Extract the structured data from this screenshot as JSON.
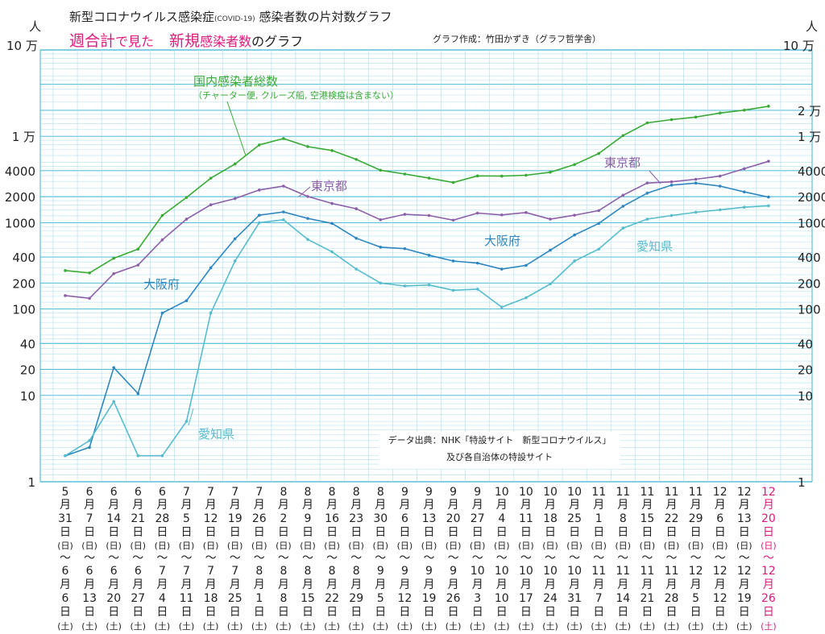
{
  "header": {
    "title_main": "新型コロナウイルス感染症",
    "title_tag": "(COVID-19)",
    "title_rest": "感染者数の片対数グラフ",
    "subtitle_a": "週合計",
    "subtitle_b": "で見た",
    "subtitle_c": "新規",
    "subtitle_d": "感染者数",
    "subtitle_e": "のグラフ",
    "credit": "グラフ作成：竹田かずき（グラフ哲学舎）"
  },
  "units": {
    "left_person": "人",
    "left_max": "10 万",
    "right_person": "人",
    "right_max": "10 万"
  },
  "source": {
    "line1": "データ出典：NHK「特設サイト　新型コロナウイルス」",
    "line2": "及び各自治体の特設サイト"
  },
  "chart_data": {
    "type": "line",
    "y_scale": "log",
    "ylim": [
      1,
      100000
    ],
    "grid": true,
    "y_ticks_left": [
      "10 万",
      "1 万",
      "4000",
      "2000",
      "1000",
      "400",
      "200",
      "100",
      "40",
      "20",
      "10",
      "1"
    ],
    "y_ticks_right": [
      "2 万",
      "1 万",
      "4000",
      "2000",
      "1000",
      "400",
      "200",
      "100",
      "40",
      "20",
      "10",
      "1"
    ],
    "categories": [
      {
        "m1": "5",
        "d1": "31",
        "m2": "6",
        "d2": "6"
      },
      {
        "m1": "6",
        "d1": "7",
        "m2": "6",
        "d2": "13"
      },
      {
        "m1": "6",
        "d1": "14",
        "m2": "6",
        "d2": "20"
      },
      {
        "m1": "6",
        "d1": "21",
        "m2": "6",
        "d2": "27"
      },
      {
        "m1": "6",
        "d1": "28",
        "m2": "7",
        "d2": "4"
      },
      {
        "m1": "7",
        "d1": "5",
        "m2": "7",
        "d2": "11"
      },
      {
        "m1": "7",
        "d1": "12",
        "m2": "7",
        "d2": "18"
      },
      {
        "m1": "7",
        "d1": "19",
        "m2": "7",
        "d2": "25"
      },
      {
        "m1": "7",
        "d1": "26",
        "m2": "8",
        "d2": "1"
      },
      {
        "m1": "8",
        "d1": "2",
        "m2": "8",
        "d2": "8"
      },
      {
        "m1": "8",
        "d1": "9",
        "m2": "8",
        "d2": "15"
      },
      {
        "m1": "8",
        "d1": "16",
        "m2": "8",
        "d2": "22"
      },
      {
        "m1": "8",
        "d1": "23",
        "m2": "8",
        "d2": "29"
      },
      {
        "m1": "8",
        "d1": "30",
        "m2": "9",
        "d2": "5"
      },
      {
        "m1": "9",
        "d1": "6",
        "m2": "9",
        "d2": "12"
      },
      {
        "m1": "9",
        "d1": "13",
        "m2": "9",
        "d2": "19"
      },
      {
        "m1": "9",
        "d1": "20",
        "m2": "9",
        "d2": "26"
      },
      {
        "m1": "9",
        "d1": "27",
        "m2": "10",
        "d2": "3"
      },
      {
        "m1": "10",
        "d1": "4",
        "m2": "10",
        "d2": "10"
      },
      {
        "m1": "10",
        "d1": "11",
        "m2": "10",
        "d2": "17"
      },
      {
        "m1": "10",
        "d1": "18",
        "m2": "10",
        "d2": "24"
      },
      {
        "m1": "10",
        "d1": "25",
        "m2": "10",
        "d2": "31"
      },
      {
        "m1": "11",
        "d1": "1",
        "m2": "11",
        "d2": "7"
      },
      {
        "m1": "11",
        "d1": "8",
        "m2": "11",
        "d2": "14"
      },
      {
        "m1": "11",
        "d1": "15",
        "m2": "11",
        "d2": "21"
      },
      {
        "m1": "11",
        "d1": "22",
        "m2": "11",
        "d2": "28"
      },
      {
        "m1": "11",
        "d1": "29",
        "m2": "12",
        "d2": "5"
      },
      {
        "m1": "12",
        "d1": "6",
        "m2": "12",
        "d2": "12"
      },
      {
        "m1": "12",
        "d1": "13",
        "m2": "12",
        "d2": "19"
      },
      {
        "m1": "12",
        "d1": "20",
        "m2": "12",
        "d2": "26"
      }
    ],
    "category_words": {
      "month": "月",
      "day": "日",
      "sun": "(日)",
      "sat": "(土)",
      "range": "〜"
    },
    "highlight_last_category_color": "#e0197d",
    "series": [
      {
        "name": "国内感染者総数",
        "note": "（チャーター便, クルーズ船, 空港検疫は含まない）",
        "color": "#3aaa35",
        "values": [
          279,
          262,
          387,
          494,
          1210,
          1960,
          3270,
          4780,
          7950,
          9420,
          7600,
          6850,
          5400,
          4050,
          3660,
          3280,
          2920,
          3480,
          3460,
          3540,
          3840,
          4710,
          6330,
          10200,
          14300,
          15600,
          16700,
          18600,
          20100,
          22300
        ]
      },
      {
        "name": "東京都",
        "color": "#8c5fa8",
        "values": [
          143,
          133,
          257,
          323,
          632,
          1100,
          1610,
          1900,
          2390,
          2650,
          2010,
          1670,
          1450,
          1080,
          1250,
          1210,
          1070,
          1290,
          1230,
          1310,
          1100,
          1220,
          1380,
          2080,
          2880,
          2970,
          3180,
          3460,
          4220,
          5140
        ]
      },
      {
        "name": "大阪府",
        "color": "#2e86c1",
        "values": [
          2,
          2.5,
          21,
          10.5,
          90,
          125,
          300,
          650,
          1220,
          1330,
          1120,
          980,
          660,
          520,
          500,
          420,
          360,
          340,
          290,
          320,
          480,
          720,
          980,
          1550,
          2200,
          2720,
          2870,
          2650,
          2270,
          1980
        ]
      },
      {
        "name": "愛知県",
        "color": "#56bccc",
        "values": [
          2,
          3,
          8.5,
          2,
          2,
          5,
          90,
          360,
          1000,
          1080,
          640,
          460,
          290,
          200,
          185,
          190,
          165,
          170,
          105,
          135,
          195,
          360,
          495,
          865,
          1100,
          1210,
          1320,
          1410,
          1510,
          1570
        ]
      }
    ],
    "annotations": [
      {
        "text": "国内感染者総数",
        "series": "国内感染者総数"
      },
      {
        "text": "（チャーター便, クルーズ船, 空港検疫は含まない）",
        "series": "国内感染者総数"
      },
      {
        "text": "東京都",
        "series": "東京都"
      },
      {
        "text": "東京都",
        "series": "東京都"
      },
      {
        "text": "大阪府",
        "series": "大阪府"
      },
      {
        "text": "大阪府",
        "series": "大阪府"
      },
      {
        "text": "愛知県",
        "series": "愛知県"
      },
      {
        "text": "愛知県",
        "series": "愛知県"
      }
    ]
  }
}
